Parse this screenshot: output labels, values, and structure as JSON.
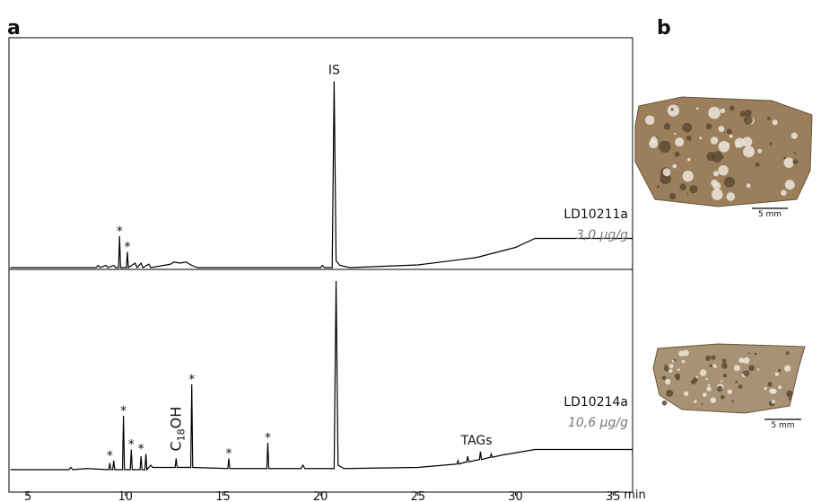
{
  "panel_labels": [
    "a",
    "b"
  ],
  "chart_data": {
    "type": "line",
    "xlabel": "min",
    "xlim": [
      4.03,
      36.0
    ],
    "xticks": [
      5,
      10,
      15,
      20,
      25,
      30,
      35
    ],
    "series": [
      {
        "name": "LD10211a",
        "concentration": "3,0 µg/g",
        "color": "#000000",
        "ylim": [
          0,
          100
        ],
        "x": [
          4.1,
          8.5,
          8.6,
          8.7,
          9.0,
          9.1,
          9.4,
          9.5,
          9.65,
          9.7,
          9.75,
          10.05,
          10.1,
          10.15,
          10.5,
          10.6,
          10.8,
          10.9,
          11.2,
          11.3,
          12.3,
          12.5,
          12.8,
          13.1,
          13.4,
          13.7,
          20.0,
          20.1,
          20.2,
          20.6,
          20.7,
          20.8,
          21.0,
          21.5,
          25,
          28,
          30,
          31,
          36
        ],
        "values": [
          0,
          0,
          1,
          0,
          1,
          0,
          1,
          0,
          0,
          14,
          0,
          0,
          7,
          0,
          2,
          0,
          2,
          0,
          1.5,
          0,
          1.5,
          2.5,
          2,
          2.5,
          1,
          0,
          0,
          1,
          0,
          0,
          83,
          3,
          1,
          0,
          1.2,
          4.5,
          9,
          13,
          13
        ]
      },
      {
        "name": "LD10214a",
        "concentration": "10,6 µg/g",
        "color": "#000000",
        "ylim": [
          0,
          90
        ],
        "x": [
          4.1,
          7.1,
          7.2,
          7.3,
          8,
          9.15,
          9.2,
          9.25,
          9.35,
          9.4,
          9.45,
          9.85,
          9.9,
          9.95,
          10.25,
          10.3,
          10.35,
          10.75,
          10.8,
          10.85,
          11.0,
          11.05,
          11.1,
          11.3,
          11.4,
          12.55,
          12.6,
          12.65,
          13.35,
          13.4,
          13.45,
          15.25,
          15.3,
          15.35,
          17.25,
          17.3,
          17.35,
          19.0,
          19.1,
          19.2,
          20.7,
          20.8,
          20.9,
          21.2,
          25,
          27,
          27.05,
          27.1,
          27.5,
          27.55,
          27.6,
          28.15,
          28.2,
          28.25,
          28.7,
          28.75,
          28.8,
          29.3,
          30,
          31,
          36
        ],
        "values": [
          0,
          0,
          1,
          0,
          0.5,
          0,
          3,
          0,
          0,
          4,
          0,
          0,
          24,
          0,
          0,
          9,
          0,
          0,
          6,
          0,
          0,
          7,
          0,
          2,
          1,
          1,
          5,
          1,
          1,
          38,
          1,
          0.5,
          5,
          0.5,
          0.5,
          12,
          0.5,
          0.5,
          2,
          0.5,
          0.5,
          84,
          2,
          0.5,
          1,
          2.5,
          4,
          2.5,
          3.5,
          6,
          3.5,
          4.5,
          8,
          4.5,
          5.5,
          7,
          5.5,
          6.5,
          7.5,
          9,
          9
        ]
      }
    ],
    "annotations": [
      {
        "text": "IS",
        "series": 0,
        "x": 20.7
      },
      {
        "text": "*",
        "series": 0,
        "x": 9.7
      },
      {
        "text": "*",
        "series": 0,
        "x": 10.1
      },
      {
        "text": "*",
        "series": 1,
        "x": 9.2
      },
      {
        "text": "*",
        "series": 1,
        "x": 9.9
      },
      {
        "text": "*",
        "series": 1,
        "x": 10.3
      },
      {
        "text": "*",
        "series": 1,
        "x": 10.8
      },
      {
        "text": "*",
        "series": 1,
        "x": 13.4
      },
      {
        "text": "*",
        "series": 1,
        "x": 15.3
      },
      {
        "text": "*",
        "series": 1,
        "x": 17.3
      },
      {
        "text": "TAGs",
        "series": 1,
        "x": 28.0
      }
    ],
    "rotated_annotation": {
      "parts": [
        "C",
        "18",
        "OH"
      ],
      "series": 1,
      "x": 12.6
    }
  },
  "images": [
    {
      "scale_bar": "5 mm"
    },
    {
      "scale_bar": "5 mm"
    }
  ]
}
